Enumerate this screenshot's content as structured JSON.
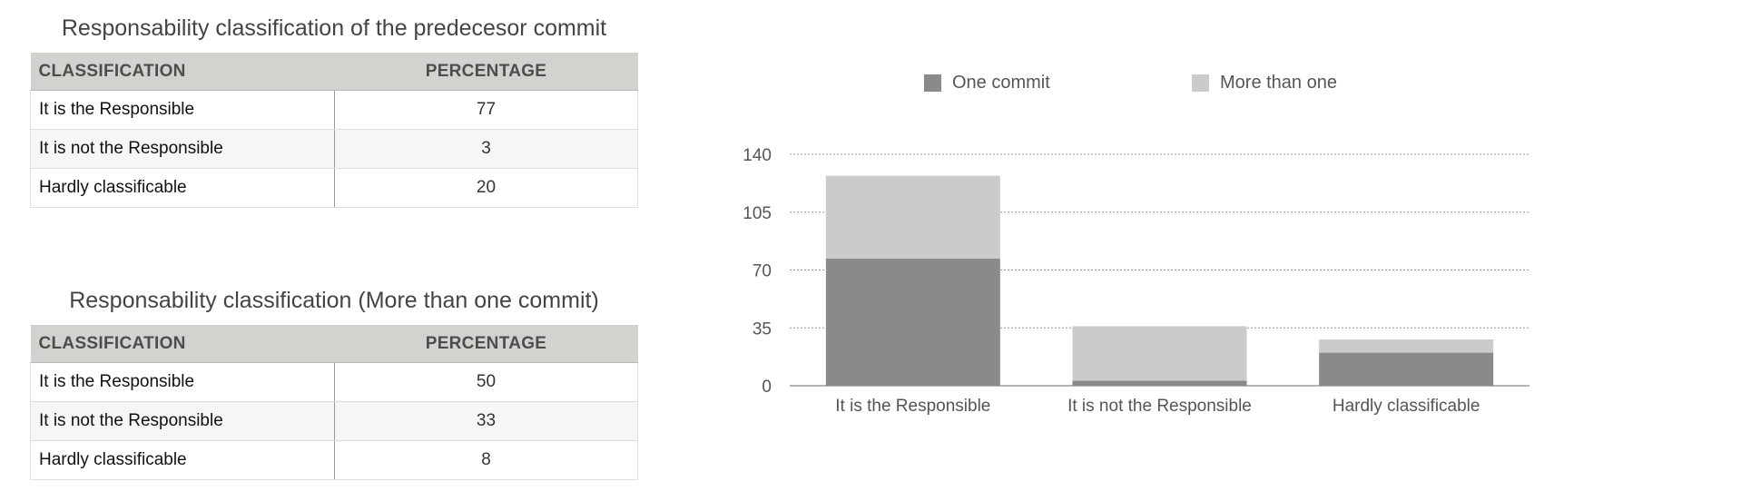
{
  "tables": [
    {
      "title": "Responsability classification of the predecesor commit",
      "headers": [
        "CLASSIFICATION",
        "PERCENTAGE"
      ],
      "rows": [
        {
          "label": "It is the Responsible",
          "value": "77"
        },
        {
          "label": "It is not the Responsible",
          "value": "3"
        },
        {
          "label": "Hardly classificable",
          "value": "20"
        }
      ]
    },
    {
      "title": "Responsability classification (More than one commit)",
      "headers": [
        "CLASSIFICATION",
        "PERCENTAGE"
      ],
      "rows": [
        {
          "label": "It is the Responsible",
          "value": "50"
        },
        {
          "label": "It is not the Responsible",
          "value": "33"
        },
        {
          "label": "Hardly classificable",
          "value": "8"
        }
      ]
    }
  ],
  "chart_data": {
    "type": "bar",
    "stacked": true,
    "categories": [
      "It is the Responsible",
      "It is not the Responsible",
      "Hardly classificable"
    ],
    "series": [
      {
        "name": "One commit",
        "values": [
          77,
          3,
          20
        ],
        "color": "#8a8a8a"
      },
      {
        "name": "More than one",
        "values": [
          50,
          33,
          8
        ],
        "color": "#cbcbca"
      }
    ],
    "yticks": [
      0,
      35,
      70,
      105,
      140
    ],
    "ylim": [
      0,
      140
    ],
    "title": "",
    "xlabel": "",
    "ylabel": "",
    "legend_position": "top",
    "grid": true
  }
}
